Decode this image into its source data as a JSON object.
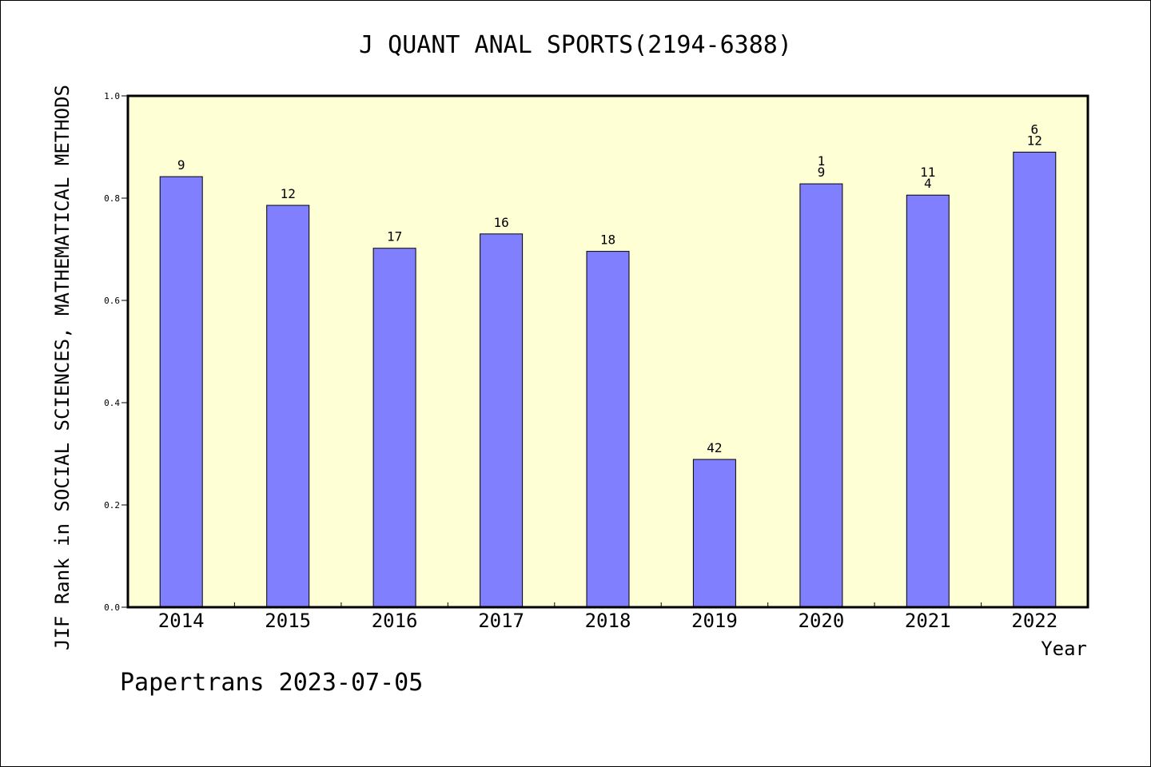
{
  "chart_data": {
    "type": "bar",
    "title": "J QUANT ANAL SPORTS(2194-6388)",
    "xlabel": "Year",
    "ylabel": "JIF Rank in SOCIAL SCIENCES, MATHEMATICAL METHODS",
    "ylim": [
      0,
      1.0
    ],
    "yticks": [
      "0.0",
      "0.2",
      "0.4",
      "0.6",
      "0.8",
      "1.0"
    ],
    "categories": [
      "2014",
      "2015",
      "2016",
      "2017",
      "2018",
      "2019",
      "2020",
      "2021",
      "2022"
    ],
    "values": [
      0.842,
      0.786,
      0.702,
      0.73,
      0.696,
      0.289,
      0.828,
      0.806,
      0.89
    ],
    "bar_labels": [
      [
        "9"
      ],
      [
        "12"
      ],
      [
        "17"
      ],
      [
        "16"
      ],
      [
        "18"
      ],
      [
        "42"
      ],
      [
        "1",
        "9"
      ],
      [
        "11",
        "4"
      ],
      [
        "6",
        "12"
      ]
    ],
    "grid": false,
    "colors": {
      "bar": "#8080ff",
      "plot_bg": "#ffffd6",
      "bar_edge": "#000000"
    }
  },
  "footer": {
    "credit": "Papertrans 2023-07-05"
  }
}
